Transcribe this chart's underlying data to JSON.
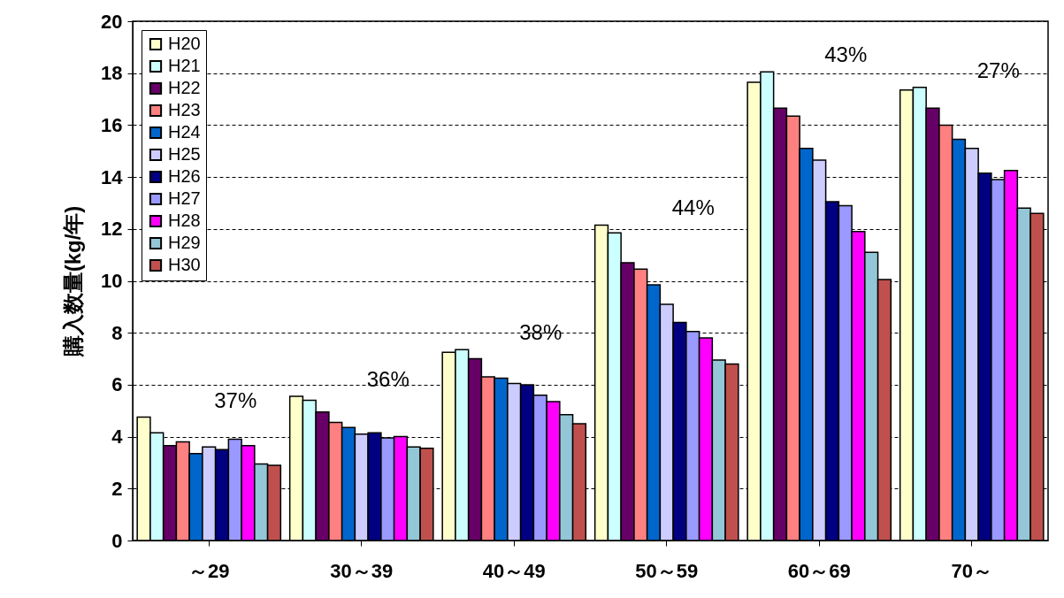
{
  "chart_data": {
    "type": "bar",
    "ylabel": "購入数量(kg/年)",
    "categories": [
      "～29",
      "30～39",
      "40～49",
      "50～59",
      "60～69",
      "70～"
    ],
    "series": [
      {
        "name": "H20",
        "color": "#ffffcc",
        "values": [
          4.75,
          5.55,
          7.25,
          12.15,
          17.65,
          17.35
        ]
      },
      {
        "name": "H21",
        "color": "#ccffff",
        "values": [
          4.15,
          5.4,
          7.35,
          11.85,
          18.05,
          17.45
        ]
      },
      {
        "name": "H22",
        "color": "#660066",
        "values": [
          3.65,
          4.95,
          7.0,
          10.7,
          16.65,
          16.65
        ]
      },
      {
        "name": "H23",
        "color": "#ff8080",
        "values": [
          3.8,
          4.55,
          6.3,
          10.45,
          16.35,
          16.0
        ]
      },
      {
        "name": "H24",
        "color": "#0066cc",
        "values": [
          3.35,
          4.35,
          6.25,
          9.85,
          15.1,
          15.45
        ]
      },
      {
        "name": "H25",
        "color": "#ccccff",
        "values": [
          3.6,
          4.1,
          6.05,
          9.1,
          14.65,
          15.1
        ]
      },
      {
        "name": "H26",
        "color": "#000080",
        "values": [
          3.5,
          4.15,
          6.0,
          8.4,
          13.05,
          14.15
        ]
      },
      {
        "name": "H27",
        "color": "#9999ff",
        "values": [
          3.9,
          3.95,
          5.6,
          8.05,
          12.9,
          13.9
        ]
      },
      {
        "name": "H28",
        "color": "#ff00ff",
        "values": [
          3.65,
          4.0,
          5.35,
          7.8,
          11.9,
          14.25
        ]
      },
      {
        "name": "H29",
        "color": "#93c6d6",
        "values": [
          2.95,
          3.6,
          4.85,
          6.95,
          11.1,
          12.8
        ]
      },
      {
        "name": "H30",
        "color": "#c0504d",
        "values": [
          2.9,
          3.55,
          4.5,
          6.8,
          10.05,
          12.6
        ]
      }
    ],
    "ylim": [
      0,
      20
    ],
    "yticks": [
      0,
      2,
      4,
      6,
      8,
      10,
      12,
      14,
      16,
      18,
      20
    ],
    "grid": "y",
    "legend": "top left",
    "annotations": [
      "37%",
      "36%",
      "38%",
      "44%",
      "43%",
      "27%"
    ]
  }
}
